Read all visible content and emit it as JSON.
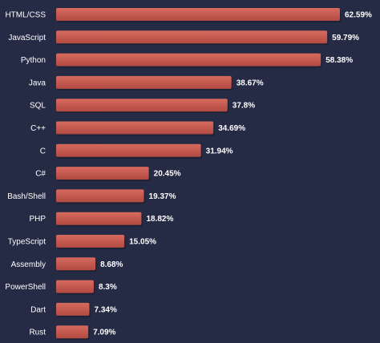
{
  "chart_data": {
    "type": "bar",
    "orientation": "horizontal",
    "categories": [
      "HTML/CSS",
      "JavaScript",
      "Python",
      "Java",
      "SQL",
      "C++",
      "C",
      "C#",
      "Bash/Shell",
      "PHP",
      "TypeScript",
      "Assembly",
      "PowerShell",
      "Dart",
      "Rust"
    ],
    "values": [
      62.59,
      59.79,
      58.38,
      38.67,
      37.8,
      34.69,
      31.94,
      20.45,
      19.37,
      18.82,
      15.05,
      8.68,
      8.3,
      7.34,
      7.09
    ],
    "value_labels": [
      "62.59%",
      "59.79%",
      "58.38%",
      "38.67%",
      "37.8%",
      "34.69%",
      "31.94%",
      "20.45%",
      "19.37%",
      "18.82%",
      "15.05%",
      "8.68%",
      "8.3%",
      "7.34%",
      "7.09%"
    ],
    "bar_color": "#c45a50",
    "bar_shadow_color": "#1a1e30",
    "background_color": "#262b45",
    "grid": false,
    "legend": "none"
  }
}
